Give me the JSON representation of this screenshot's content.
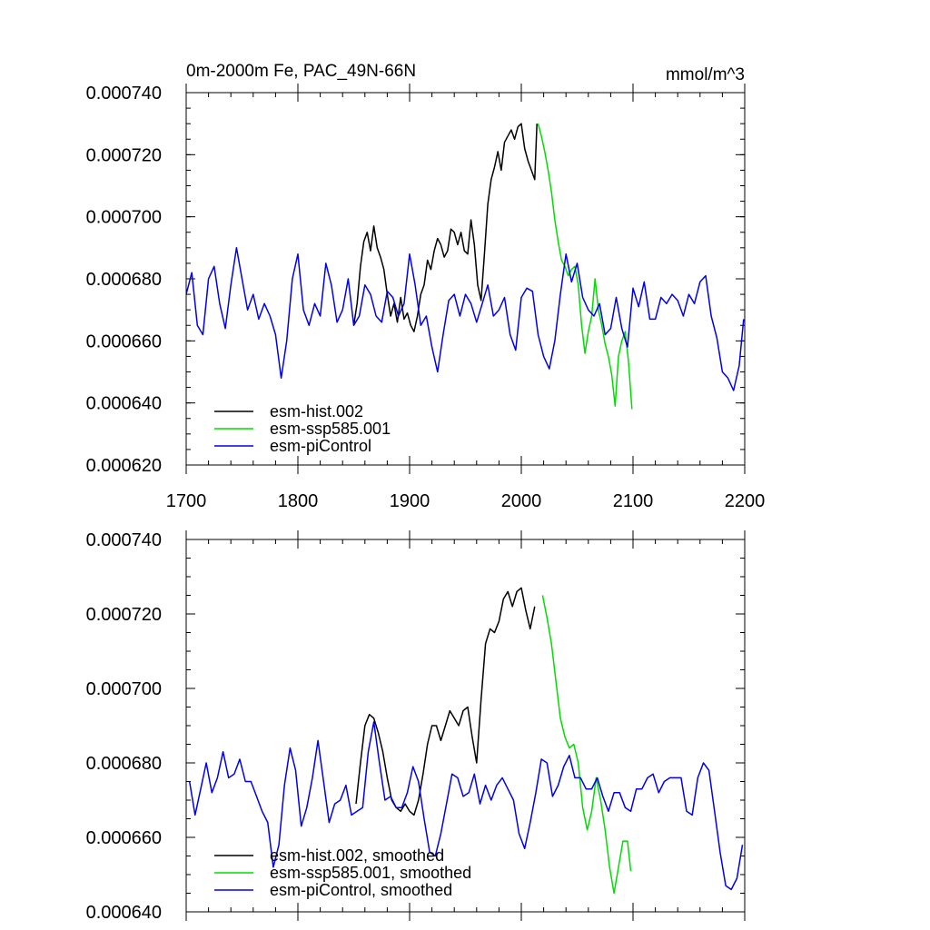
{
  "colors": {
    "hist": "#000000",
    "ssp": "#00dd00",
    "pic": "#0000ee"
  },
  "chart_data": [
    {
      "type": "line",
      "title": "0m-2000m Fe, PAC_49N-66N",
      "units": "mmol/m^3",
      "xlim": [
        1700,
        2200
      ],
      "ylim": [
        0.00062,
        0.00074
      ],
      "xticks": [
        1700,
        1800,
        1900,
        2000,
        2100,
        2200
      ],
      "xtick_labels": [
        "1700",
        "1800",
        "1900",
        "2000",
        "2100",
        "2200"
      ],
      "yticks": [
        0.00062,
        0.00064,
        0.00066,
        0.00068,
        0.0007,
        0.00072,
        0.00074
      ],
      "ytick_labels": [
        "0.000620",
        "0.000640",
        "0.000660",
        "0.000680",
        "0.000700",
        "0.000720",
        "0.000740"
      ],
      "legend": [
        "esm-hist.002",
        "esm-ssp585.001",
        "esm-piControl"
      ],
      "series": [
        {
          "name": "esm-hist.002",
          "color_key": "hist",
          "x": [
            1850,
            1853,
            1856,
            1859,
            1862,
            1865,
            1868,
            1871,
            1874,
            1877,
            1880,
            1883,
            1886,
            1889,
            1892,
            1895,
            1898,
            1901,
            1904,
            1907,
            1910,
            1913,
            1916,
            1919,
            1922,
            1925,
            1928,
            1931,
            1934,
            1937,
            1940,
            1943,
            1946,
            1949,
            1952,
            1955,
            1958,
            1961,
            1964,
            1967,
            1970,
            1973,
            1976,
            1979,
            1982,
            1985,
            1988,
            1991,
            1994,
            1997,
            2000,
            2003,
            2006,
            2009,
            2012,
            2014
          ],
          "y": [
            0.000665,
            0.000672,
            0.000684,
            0.000692,
            0.000695,
            0.000689,
            0.000697,
            0.00069,
            0.000687,
            0.000683,
            0.000675,
            0.000668,
            0.000672,
            0.000666,
            0.000674,
            0.000667,
            0.000669,
            0.000665,
            0.000663,
            0.000668,
            0.000675,
            0.000678,
            0.000686,
            0.000683,
            0.000689,
            0.000693,
            0.000691,
            0.000687,
            0.000689,
            0.000696,
            0.000695,
            0.000691,
            0.000695,
            0.000689,
            0.000688,
            0.000699,
            0.000691,
            0.000678,
            0.000673,
            0.000688,
            0.000704,
            0.000712,
            0.000716,
            0.000721,
            0.000715,
            0.000724,
            0.000726,
            0.000728,
            0.000725,
            0.000729,
            0.00073,
            0.000722,
            0.000718,
            0.000715,
            0.000712,
            0.00073
          ]
        },
        {
          "name": "esm-ssp585.001",
          "color_key": "ssp",
          "x": [
            2015,
            2018,
            2021,
            2024,
            2027,
            2030,
            2033,
            2036,
            2039,
            2042,
            2045,
            2048,
            2051,
            2054,
            2057,
            2060,
            2063,
            2066,
            2069,
            2072,
            2075,
            2078,
            2081,
            2084,
            2087,
            2090,
            2093,
            2096,
            2099
          ],
          "y": [
            0.00073,
            0.000726,
            0.000721,
            0.000715,
            0.000708,
            0.000699,
            0.000692,
            0.000686,
            0.000684,
            0.000681,
            0.000683,
            0.000684,
            0.000678,
            0.000665,
            0.000656,
            0.000663,
            0.000668,
            0.00068,
            0.00067,
            0.000665,
            0.000659,
            0.000655,
            0.000649,
            0.000639,
            0.000655,
            0.00066,
            0.000663,
            0.000653,
            0.000638
          ]
        },
        {
          "name": "esm-piControl",
          "color_key": "pic",
          "x": [
            1700,
            1705,
            1710,
            1715,
            1720,
            1725,
            1730,
            1735,
            1740,
            1745,
            1750,
            1755,
            1760,
            1765,
            1770,
            1775,
            1780,
            1785,
            1790,
            1795,
            1800,
            1805,
            1810,
            1815,
            1820,
            1825,
            1830,
            1835,
            1840,
            1845,
            1850,
            1855,
            1860,
            1865,
            1870,
            1875,
            1880,
            1885,
            1890,
            1895,
            1900,
            1905,
            1910,
            1915,
            1920,
            1925,
            1930,
            1935,
            1940,
            1945,
            1950,
            1955,
            1960,
            1965,
            1970,
            1975,
            1980,
            1985,
            1990,
            1995,
            2000,
            2005,
            2010,
            2015,
            2020,
            2025,
            2030,
            2035,
            2040,
            2045,
            2050,
            2055,
            2060,
            2065,
            2070,
            2075,
            2080,
            2085,
            2090,
            2095,
            2100,
            2105,
            2110,
            2115,
            2120,
            2125,
            2130,
            2135,
            2140,
            2145,
            2150,
            2155,
            2160,
            2165,
            2170,
            2175,
            2180,
            2185,
            2190,
            2195,
            2199
          ],
          "y": [
            0.000675,
            0.000682,
            0.000665,
            0.000662,
            0.00068,
            0.000684,
            0.000672,
            0.000664,
            0.000678,
            0.00069,
            0.00068,
            0.00067,
            0.000675,
            0.000667,
            0.000672,
            0.000668,
            0.000662,
            0.000648,
            0.00066,
            0.00068,
            0.000688,
            0.00067,
            0.000665,
            0.000672,
            0.000668,
            0.000685,
            0.000678,
            0.000666,
            0.00067,
            0.00068,
            0.000665,
            0.000668,
            0.000678,
            0.000675,
            0.000668,
            0.000666,
            0.000676,
            0.000674,
            0.000668,
            0.000672,
            0.000688,
            0.000678,
            0.000665,
            0.000668,
            0.000658,
            0.00065,
            0.000662,
            0.000673,
            0.000675,
            0.000668,
            0.000675,
            0.000672,
            0.000666,
            0.000672,
            0.000678,
            0.000668,
            0.00067,
            0.000674,
            0.000662,
            0.000657,
            0.000674,
            0.000677,
            0.000676,
            0.000662,
            0.000655,
            0.000651,
            0.00066,
            0.000675,
            0.000688,
            0.000679,
            0.000685,
            0.000674,
            0.00067,
            0.000668,
            0.000672,
            0.000662,
            0.000664,
            0.000674,
            0.000664,
            0.000658,
            0.000677,
            0.000671,
            0.000679,
            0.000667,
            0.000667,
            0.000674,
            0.000672,
            0.000675,
            0.000673,
            0.000668,
            0.000675,
            0.000672,
            0.000679,
            0.000681,
            0.000668,
            0.000661,
            0.00065,
            0.000648,
            0.000644,
            0.000652,
            0.000667
          ]
        }
      ]
    },
    {
      "type": "line",
      "title": "",
      "xlim": [
        1700,
        2200
      ],
      "ylim": [
        0.00064,
        0.00074
      ],
      "xticks": [
        1700,
        1800,
        1900,
        2000,
        2100,
        2200
      ],
      "yticks": [
        0.00064,
        0.00066,
        0.00068,
        0.0007,
        0.00072,
        0.00074
      ],
      "ytick_labels": [
        "0.000640",
        "0.000660",
        "0.000680",
        "0.000700",
        "0.000720",
        "0.000740"
      ],
      "legend": [
        "esm-hist.002, smoothed",
        "esm-ssp585.001, smoothed",
        "esm-piControl, smoothed"
      ],
      "series": [
        {
          "name": "esm-hist.002, smoothed",
          "color_key": "hist",
          "x": [
            1852,
            1856,
            1860,
            1864,
            1868,
            1872,
            1876,
            1880,
            1884,
            1888,
            1892,
            1896,
            1900,
            1904,
            1908,
            1912,
            1916,
            1920,
            1924,
            1928,
            1932,
            1936,
            1940,
            1944,
            1948,
            1952,
            1956,
            1960,
            1964,
            1968,
            1972,
            1976,
            1980,
            1984,
            1988,
            1992,
            1996,
            2000,
            2004,
            2008,
            2012
          ],
          "y": [
            0.000669,
            0.00068,
            0.00069,
            0.000693,
            0.000692,
            0.000688,
            0.000683,
            0.000676,
            0.00067,
            0.000668,
            0.000667,
            0.000669,
            0.000667,
            0.000666,
            0.00067,
            0.000677,
            0.000685,
            0.00069,
            0.00069,
            0.000686,
            0.00069,
            0.000694,
            0.000692,
            0.00069,
            0.000694,
            0.000695,
            0.000687,
            0.00068,
            0.000697,
            0.000712,
            0.000716,
            0.000715,
            0.000718,
            0.000724,
            0.000726,
            0.000722,
            0.000726,
            0.000727,
            0.000721,
            0.000716,
            0.000722
          ]
        },
        {
          "name": "esm-ssp585.001, smoothed",
          "color_key": "ssp",
          "x": [
            2019,
            2023,
            2027,
            2031,
            2035,
            2039,
            2043,
            2047,
            2051,
            2055,
            2059,
            2063,
            2067,
            2071,
            2075,
            2079,
            2083,
            2087,
            2091,
            2095,
            2098
          ],
          "y": [
            0.000725,
            0.000719,
            0.000712,
            0.000702,
            0.000692,
            0.000687,
            0.000684,
            0.000685,
            0.00068,
            0.000668,
            0.000662,
            0.000667,
            0.000676,
            0.00067,
            0.000662,
            0.000652,
            0.000645,
            0.000652,
            0.000659,
            0.000659,
            0.000651
          ]
        },
        {
          "name": "esm-piControl, smoothed",
          "color_key": "pic",
          "x": [
            1703,
            1708,
            1713,
            1718,
            1723,
            1728,
            1733,
            1738,
            1743,
            1748,
            1753,
            1758,
            1763,
            1768,
            1773,
            1778,
            1783,
            1788,
            1793,
            1798,
            1803,
            1808,
            1813,
            1818,
            1823,
            1828,
            1833,
            1838,
            1843,
            1848,
            1853,
            1858,
            1863,
            1868,
            1873,
            1878,
            1883,
            1888,
            1893,
            1898,
            1903,
            1908,
            1913,
            1918,
            1923,
            1928,
            1933,
            1938,
            1943,
            1948,
            1953,
            1958,
            1963,
            1968,
            1973,
            1978,
            1983,
            1988,
            1993,
            1998,
            2003,
            2008,
            2013,
            2018,
            2023,
            2028,
            2033,
            2038,
            2043,
            2048,
            2053,
            2058,
            2063,
            2068,
            2073,
            2078,
            2083,
            2088,
            2093,
            2098,
            2103,
            2108,
            2113,
            2118,
            2123,
            2128,
            2133,
            2138,
            2143,
            2148,
            2153,
            2158,
            2163,
            2168,
            2173,
            2178,
            2183,
            2188,
            2193,
            2198
          ],
          "y": [
            0.000675,
            0.000666,
            0.000673,
            0.00068,
            0.000672,
            0.000676,
            0.000683,
            0.000676,
            0.000677,
            0.000681,
            0.000675,
            0.000675,
            0.000671,
            0.000667,
            0.000664,
            0.000652,
            0.000658,
            0.000674,
            0.000684,
            0.000678,
            0.000663,
            0.000668,
            0.000676,
            0.000686,
            0.000675,
            0.000664,
            0.000669,
            0.00067,
            0.000674,
            0.000666,
            0.000667,
            0.000668,
            0.000683,
            0.000691,
            0.00068,
            0.00067,
            0.000671,
            0.000668,
            0.000668,
            0.000672,
            0.000679,
            0.000675,
            0.000665,
            0.000656,
            0.000655,
            0.000661,
            0.000669,
            0.000677,
            0.000676,
            0.000671,
            0.000672,
            0.000677,
            0.000669,
            0.000674,
            0.00067,
            0.000674,
            0.000676,
            0.000673,
            0.00067,
            0.000661,
            0.000657,
            0.000664,
            0.000672,
            0.000681,
            0.00068,
            0.000671,
            0.000674,
            0.000679,
            0.000682,
            0.000676,
            0.000676,
            0.000673,
            0.000673,
            0.000676,
            0.000671,
            0.000667,
            0.000672,
            0.000672,
            0.000668,
            0.000667,
            0.000673,
            0.000673,
            0.000676,
            0.000677,
            0.000672,
            0.000675,
            0.000676,
            0.000676,
            0.000676,
            0.000667,
            0.000666,
            0.000676,
            0.00068,
            0.000678,
            0.000667,
            0.000656,
            0.000647,
            0.000646,
            0.000649,
            0.000658
          ]
        }
      ]
    }
  ]
}
